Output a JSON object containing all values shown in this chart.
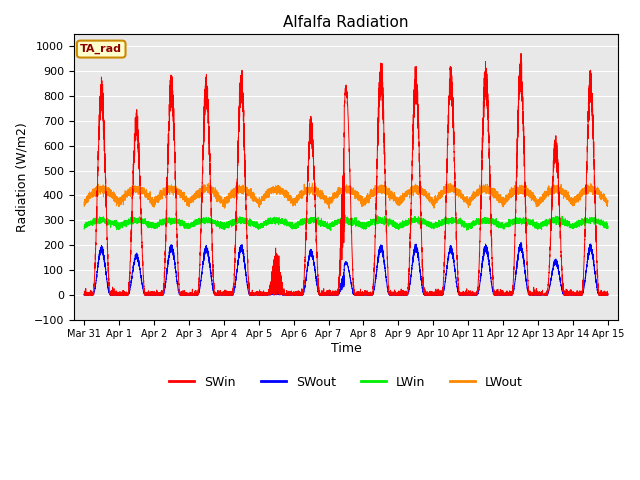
{
  "title": "Alfalfa Radiation",
  "xlabel": "Time",
  "ylabel": "Radiation (W/m2)",
  "ylim": [
    -100,
    1050
  ],
  "plot_bg": "#e8e8e8",
  "fig_bg": "#ffffff",
  "grid_color": "#ffffff",
  "tag_label": "TA_rad",
  "tag_bg": "#ffffcc",
  "tag_border": "#cc8800",
  "legend_entries": [
    "SWin",
    "SWout",
    "LWin",
    "LWout"
  ],
  "legend_colors": [
    "#ff0000",
    "#0000ff",
    "#00ee00",
    "#ff8800"
  ],
  "n_days": 15,
  "xtick_labels": [
    "Mar 31",
    "Apr 1",
    "Apr 2",
    "Apr 3",
    "Apr 4",
    "Apr 5",
    "Apr 6",
    "Apr 7",
    "Apr 8",
    "Apr 9",
    "Apr 10",
    "Apr 11",
    "Apr 12",
    "Apr 13",
    "Apr 14",
    "Apr 15"
  ],
  "SWin_peaks": [
    880,
    750,
    900,
    890,
    910,
    300,
    725,
    830,
    950,
    920,
    930,
    940,
    960,
    640,
    905
  ],
  "SWout_peaks": [
    200,
    170,
    205,
    200,
    205,
    70,
    185,
    130,
    205,
    205,
    200,
    205,
    210,
    145,
    205
  ],
  "LWin_base": 275,
  "LWin_amp": 25,
  "LWout_base": 370,
  "LWout_amp": 55
}
